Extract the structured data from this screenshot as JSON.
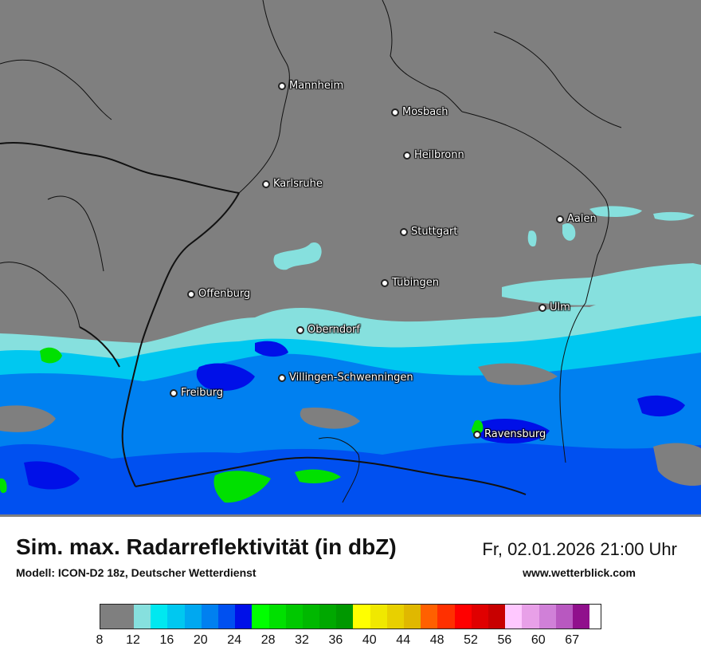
{
  "title": "Sim. max. Radarreflektivität (in dbZ)",
  "subtitle": "Modell: ICON-D2 18z, Deutscher Wetterdienst",
  "datetime": "Fr, 02.01.2026 21:00 Uhr",
  "website": "www.wetterblick.com",
  "cities": [
    {
      "name": "Mannheim"
    },
    {
      "name": "Mosbach"
    },
    {
      "name": "Heilbronn"
    },
    {
      "name": "Karlsruhe"
    },
    {
      "name": "Aalen"
    },
    {
      "name": "Stuttgart"
    },
    {
      "name": "Tübingen"
    },
    {
      "name": "Offenburg"
    },
    {
      "name": "Ulm"
    },
    {
      "name": "Oberndorf"
    },
    {
      "name": "Villingen-Schwenningen"
    },
    {
      "name": "Freiburg"
    },
    {
      "name": "Ravensburg"
    }
  ],
  "legend": {
    "colors": [
      "#7f7f7f",
      "#86e0de",
      "#00e8f0",
      "#00c8f0",
      "#00a8f0",
      "#0080f0",
      "#0050f0",
      "#0010e8",
      "#00ff00",
      "#00e000",
      "#00c800",
      "#00b800",
      "#00a800",
      "#009800",
      "#ffff00",
      "#f0e800",
      "#e8d000",
      "#e0b800",
      "#ff6000",
      "#ff3000",
      "#ff0000",
      "#e00000",
      "#c80000",
      "#ffc8ff",
      "#e8a0e8",
      "#d080d8",
      "#b858c0",
      "#90108c"
    ],
    "ticks": [
      "8",
      "12",
      "16",
      "20",
      "24",
      "28",
      "32",
      "36",
      "40",
      "44",
      "48",
      "52",
      "56",
      "60",
      "67"
    ]
  },
  "colors": {
    "land": "#7f7f7f",
    "light_cyan": "#86e0de",
    "cyan": "#00c8f0",
    "blue": "#0080f0",
    "deep_blue": "#0010e8",
    "green": "#00e000"
  }
}
